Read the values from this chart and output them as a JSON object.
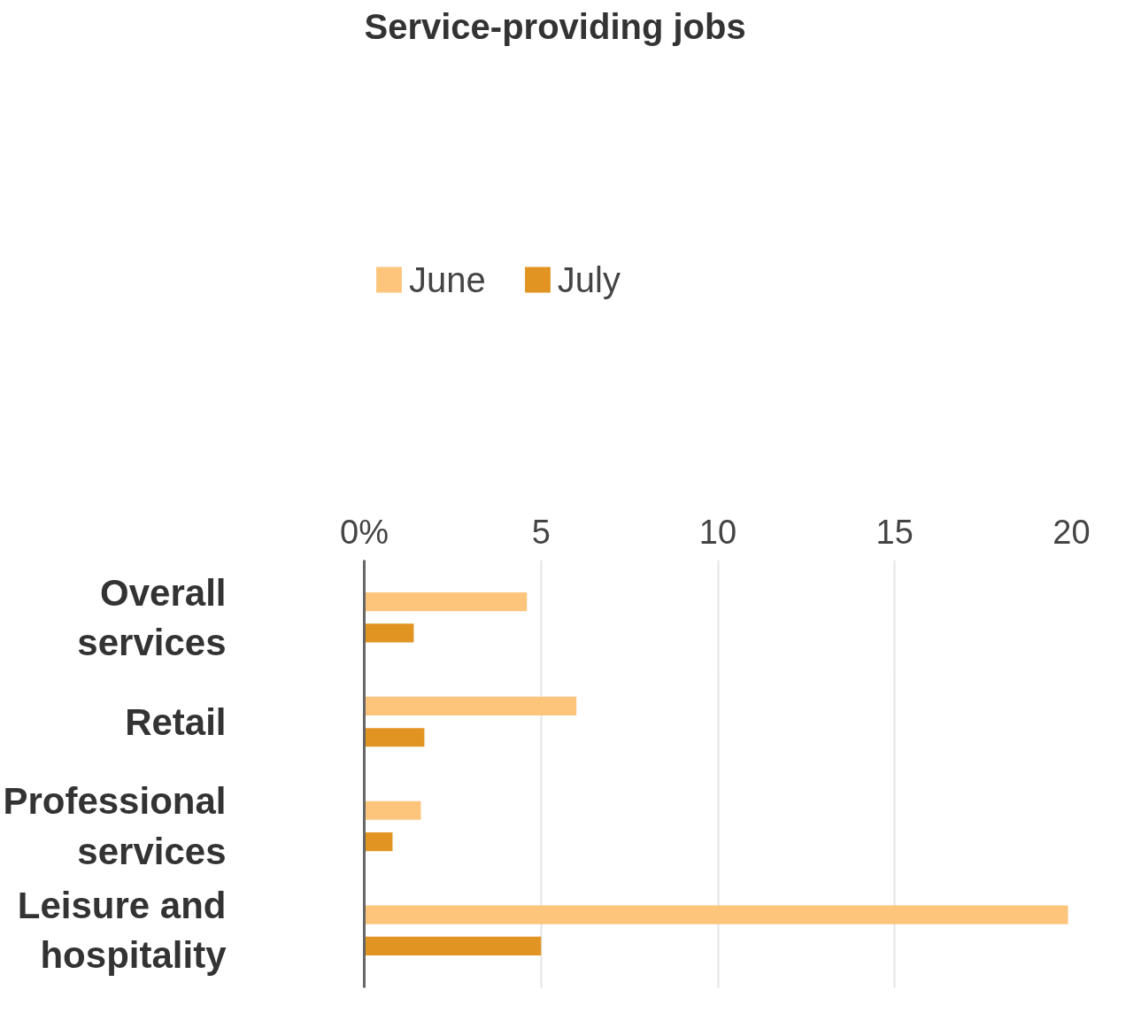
{
  "chart_data": {
    "type": "bar",
    "orientation": "horizontal",
    "title": "Service-providing jobs",
    "categories": [
      "Overall services",
      "Retail",
      "Professional services",
      "Leisure and hospitality"
    ],
    "series": [
      {
        "name": "June",
        "color": "#fdc47c",
        "values": [
          4.6,
          6.0,
          1.6,
          19.9
        ]
      },
      {
        "name": "July",
        "color": "#e29423",
        "values": [
          1.4,
          1.7,
          0.8,
          5.0
        ]
      }
    ],
    "xlim": [
      0,
      20
    ],
    "xticks": [
      {
        "value": 0,
        "label": "0%"
      },
      5,
      10,
      15,
      20
    ],
    "grid": "x",
    "legend": "top left"
  }
}
